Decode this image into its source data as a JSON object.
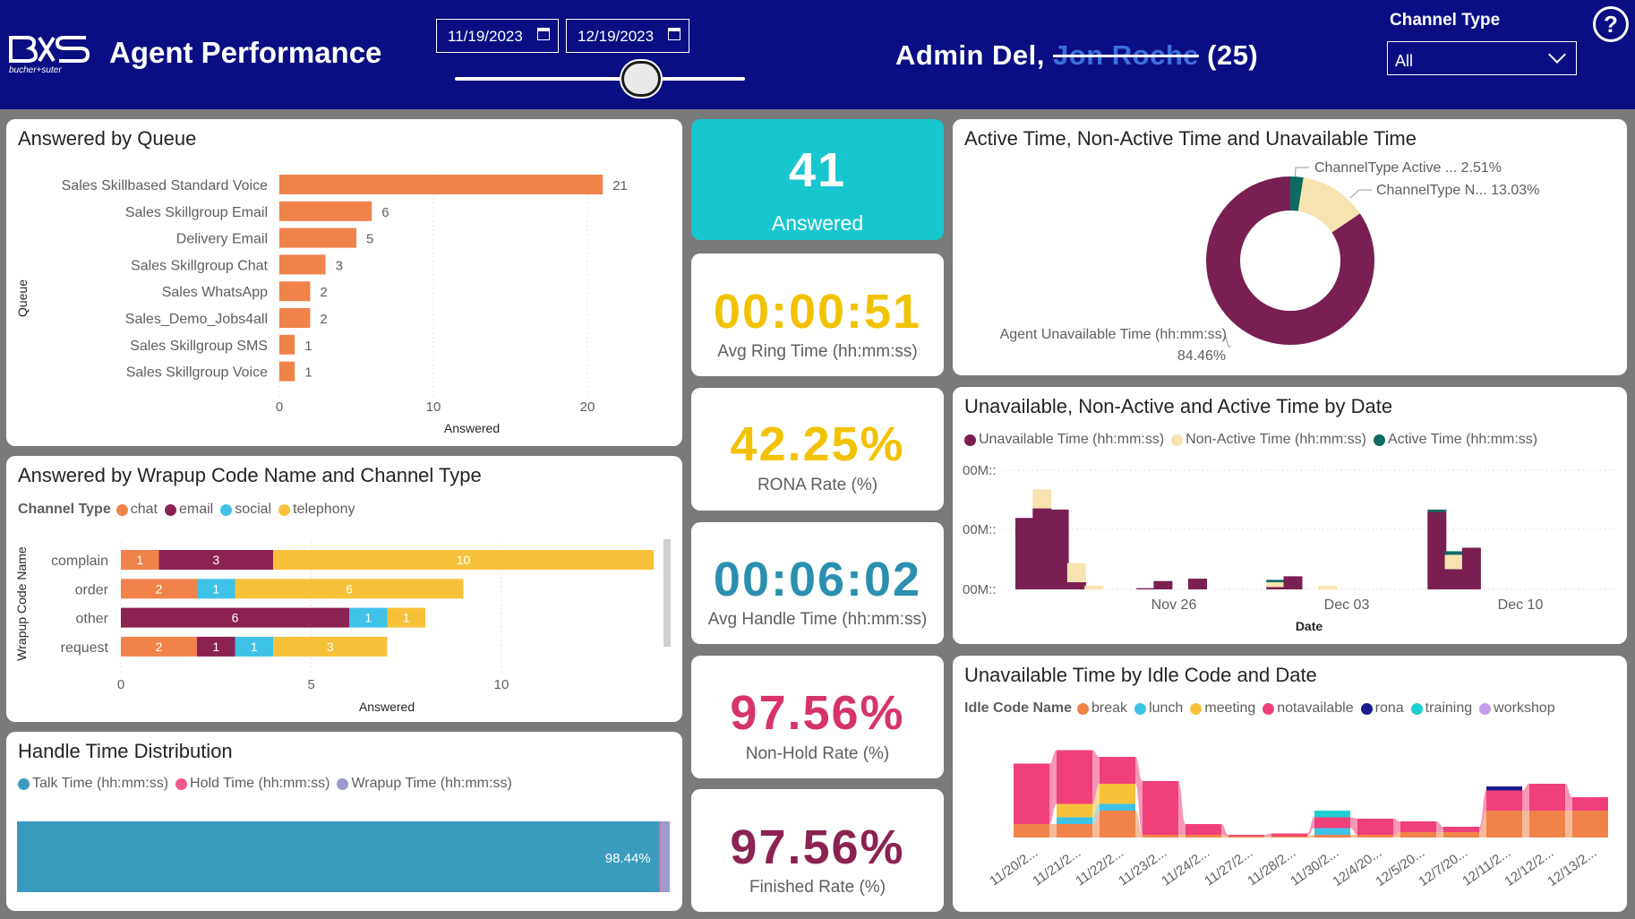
{
  "header": {
    "logo_text": "bucher+suter",
    "title": "Agent Performance",
    "date_start": "11/19/2023",
    "date_end": "12/19/2023",
    "user_prefix": "Admin Del,",
    "user_redacted": "Jon Roche",
    "user_suffix": "(25)",
    "channel_type_label": "Channel Type",
    "channel_type_value": "All",
    "help_glyph": "?"
  },
  "kpis": [
    {
      "value": "41",
      "label": "Answered",
      "color": "#ffffff"
    },
    {
      "value": "00:00:51",
      "label": "Avg Ring Time (hh:mm:ss)",
      "color": "#f2c200"
    },
    {
      "value": "42.25%",
      "label": "RONA Rate (%)",
      "color": "#f2c200"
    },
    {
      "value": "00:06:02",
      "label": "Avg Handle Time (hh:mm:ss)",
      "color": "#2b8fb0"
    },
    {
      "value": "97.56%",
      "label": "Non-Hold Rate (%)",
      "color": "#d6336c"
    },
    {
      "value": "97.56%",
      "label": "Finished Rate (%)",
      "color": "#8b2252"
    }
  ],
  "queue_chart": {
    "title": "Answered by Queue",
    "ylabel": "Queue",
    "xlabel": "Answered",
    "ticks": [
      "0",
      "10",
      "20"
    ]
  },
  "wrapup_chart": {
    "title": "Answered by Wrapup Code Name and Channel Type",
    "legend_title": "Channel Type",
    "legend": [
      "chat",
      "email",
      "social",
      "telephony"
    ],
    "ylabel": "Wrapup Code Name",
    "xlabel": "Answered",
    "ticks": [
      "0",
      "5",
      "10"
    ]
  },
  "handle_chart": {
    "title": "Handle Time Distribution",
    "legend": [
      "Talk Time (hh:mm:ss)",
      "Hold Time (hh:mm:ss)",
      "Wrapup Time (hh:mm:ss)"
    ],
    "bar_label": "98.44%"
  },
  "donut_chart": {
    "title": "Active Time, Non-Active Time and Unavailable Time",
    "labels": [
      "ChannelType Active ... 2.51%",
      "ChannelType N... 13.03%",
      "Agent Unavailable Time (hh:mm:ss)",
      "84.46%"
    ]
  },
  "date_chart": {
    "title": "Unavailable, Non-Active and Active Time by Date",
    "legend": [
      "Unavailable Time (hh:mm:ss)",
      "Non-Active Time (hh:mm:ss)",
      "Active Time (hh:mm:ss)"
    ],
    "yticks": [
      "00M::",
      "00M::",
      "00M::"
    ],
    "xticks": [
      "Nov 26",
      "Dec 03",
      "Dec 10"
    ],
    "xlabel": "Date"
  },
  "idle_chart": {
    "title": "Unavailable Time by Idle Code and Date",
    "legend_title": "Idle Code Name",
    "legend": [
      "break",
      "lunch",
      "meeting",
      "notavailable",
      "rona",
      "training",
      "workshop"
    ],
    "xticks": [
      "11/20/2...",
      "11/21/2...",
      "11/22/2...",
      "11/23/2...",
      "11/24/2...",
      "11/27/2...",
      "11/28/2...",
      "11/30/2...",
      "12/4/20...",
      "12/5/20...",
      "12/7/20...",
      "12/11/2...",
      "12/12/2...",
      "12/13/2..."
    ]
  },
  "colors": {
    "header_bg": "#0a0e82",
    "chat": "#f0834a",
    "email": "#8b2252",
    "social": "#3fc2e8",
    "telephony": "#f7c23a",
    "unavailable": "#7a1f52",
    "nonactive": "#f7e3b0",
    "active": "#0e6b62",
    "talk": "#3a9bbf",
    "hold": "#f05a8a",
    "wrapup": "#9b9bd0",
    "kpi_teal": "#17c6cf",
    "break": "#f0834a",
    "lunch": "#3fc2e8",
    "meeting": "#f7c23a",
    "notavailable": "#f0407a",
    "rona": "#1a1a8c",
    "training": "#1fcfcf",
    "workshop": "#c89be8"
  },
  "chart_data": [
    {
      "type": "bar",
      "orientation": "horizontal",
      "title": "Answered by Queue",
      "categories": [
        "Sales Skillbased Standard Voice",
        "Sales Skillgroup Email",
        "Delivery Email",
        "Sales Skillgroup Chat",
        "Sales WhatsApp",
        "Sales_Demo_Jobs4all",
        "Sales Skillgroup SMS",
        "Sales Skillgroup Voice"
      ],
      "values": [
        21,
        6,
        5,
        3,
        2,
        2,
        1,
        1
      ],
      "xlabel": "Answered",
      "ylabel": "Queue",
      "xlim": [
        0,
        25
      ]
    },
    {
      "type": "bar",
      "orientation": "horizontal",
      "stacked": true,
      "title": "Answered by Wrapup Code Name and Channel Type",
      "categories": [
        "complain",
        "order",
        "other",
        "request"
      ],
      "series": [
        {
          "name": "chat",
          "values": [
            1,
            2,
            0,
            2
          ]
        },
        {
          "name": "email",
          "values": [
            3,
            0,
            6,
            1
          ]
        },
        {
          "name": "social",
          "values": [
            0,
            1,
            1,
            1
          ]
        },
        {
          "name": "telephony",
          "values": [
            10,
            6,
            1,
            3
          ]
        }
      ],
      "xlabel": "Answered",
      "ylabel": "Wrapup Code Name",
      "xlim": [
        0,
        14
      ]
    },
    {
      "type": "bar",
      "orientation": "horizontal",
      "stacked": true,
      "title": "Handle Time Distribution",
      "series": [
        {
          "name": "Talk Time (hh:mm:ss)",
          "values": [
            98.44
          ]
        },
        {
          "name": "Hold Time (hh:mm:ss)",
          "values": [
            0.17
          ]
        },
        {
          "name": "Wrapup Time (hh:mm:ss)",
          "values": [
            1.39
          ]
        }
      ]
    },
    {
      "type": "pie",
      "donut": true,
      "title": "Active Time, Non-Active Time and Unavailable Time",
      "categories": [
        "ChannelType Active Time",
        "ChannelType Non-Active Time",
        "Agent Unavailable Time (hh:mm:ss)"
      ],
      "values": [
        2.51,
        13.03,
        84.46
      ]
    },
    {
      "type": "bar",
      "stacked": true,
      "title": "Unavailable, Non-Active and Active Time by Date",
      "categories": [
        "Nov 20",
        "Nov 21",
        "Nov 22",
        "Nov 23",
        "Nov 24",
        "Nov 27",
        "Nov 28",
        "Nov 30",
        "Dec 04",
        "Dec 05",
        "Dec 07",
        "Dec 11",
        "Dec 12",
        "Dec 13"
      ],
      "series": [
        {
          "name": "Unavailable Time (hh:mm:ss)",
          "values": [
            60,
            68,
            67,
            6,
            0,
            1,
            7,
            9,
            2,
            11,
            0,
            65,
            17,
            35
          ]
        },
        {
          "name": "Non-Active Time (hh:mm:ss)",
          "values": [
            0,
            16,
            0,
            16,
            3,
            0,
            0,
            0,
            4,
            0,
            3,
            0,
            12,
            0
          ]
        },
        {
          "name": "Active Time (hh:mm:ss)",
          "values": [
            0,
            0,
            0,
            0,
            0,
            0,
            0,
            0,
            2,
            0,
            0,
            2,
            3,
            0
          ]
        }
      ],
      "xlabel": "Date",
      "ylim": [
        0,
        100
      ]
    },
    {
      "type": "area",
      "stacked": true,
      "title": "Unavailable Time by Idle Code and Date",
      "categories": [
        "11/20/2...",
        "11/21/2...",
        "11/22/2...",
        "11/23/2...",
        "11/24/2...",
        "11/27/2...",
        "11/28/2...",
        "11/30/2...",
        "12/4/20...",
        "12/5/20...",
        "12/7/20...",
        "12/11/2...",
        "12/12/2...",
        "12/13/2..."
      ],
      "series": [
        {
          "name": "break",
          "values": [
            10,
            10,
            20,
            2,
            2,
            1,
            1,
            2,
            2,
            4,
            4,
            20,
            20,
            20
          ]
        },
        {
          "name": "lunch",
          "values": [
            0,
            5,
            5,
            0,
            0,
            0,
            0,
            5,
            0,
            0,
            0,
            0,
            0,
            0
          ]
        },
        {
          "name": "meeting",
          "values": [
            0,
            10,
            15,
            0,
            0,
            0,
            0,
            0,
            0,
            0,
            0,
            0,
            0,
            0
          ]
        },
        {
          "name": "notavailable",
          "values": [
            45,
            40,
            20,
            40,
            8,
            1,
            2,
            8,
            12,
            8,
            4,
            15,
            20,
            10
          ]
        },
        {
          "name": "rona",
          "values": [
            0,
            0,
            0,
            0,
            0,
            0,
            0,
            0,
            0,
            0,
            0,
            3,
            0,
            0
          ]
        },
        {
          "name": "training",
          "values": [
            0,
            0,
            0,
            0,
            0,
            0,
            0,
            5,
            0,
            0,
            0,
            0,
            0,
            0
          ]
        },
        {
          "name": "workshop",
          "values": [
            0,
            0,
            0,
            0,
            0,
            0,
            0,
            0,
            0,
            0,
            0,
            0,
            0,
            0
          ]
        }
      ]
    }
  ]
}
